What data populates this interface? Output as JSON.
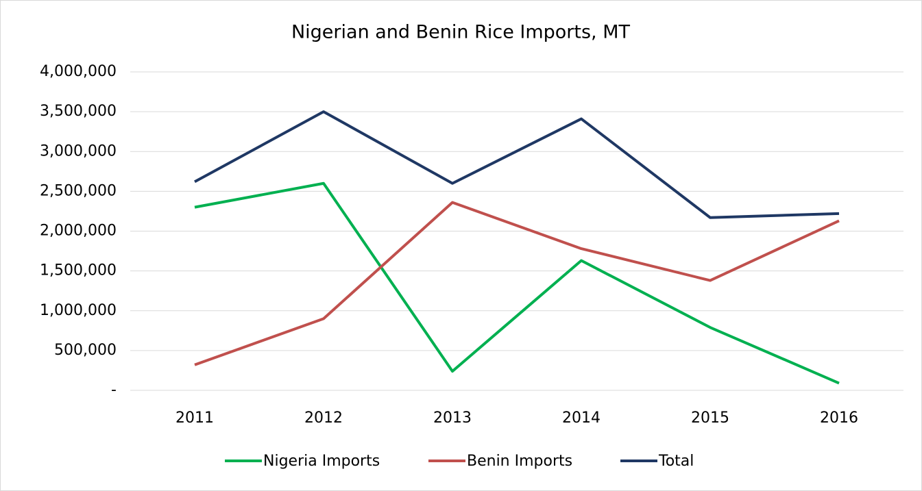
{
  "chart_data": {
    "type": "line",
    "title": "Nigerian and Benin Rice Imports, MT",
    "categories": [
      "2011",
      "2012",
      "2013",
      "2014",
      "2015",
      "2016"
    ],
    "series": [
      {
        "name": "Nigeria Imports",
        "color": "#00b050",
        "values": [
          2300000,
          2600000,
          240000,
          1630000,
          790000,
          90000
        ]
      },
      {
        "name": "Benin Imports",
        "color": "#c0504d",
        "values": [
          320000,
          900000,
          2360000,
          1780000,
          1380000,
          2130000
        ]
      },
      {
        "name": "Total",
        "color": "#1f3864",
        "values": [
          2620000,
          3500000,
          2600000,
          3410000,
          2170000,
          2220000
        ]
      }
    ],
    "ylim": [
      0,
      4000000
    ],
    "yticks": [
      {
        "value": 0,
        "label": "-"
      },
      {
        "value": 500000,
        "label": "500,000"
      },
      {
        "value": 1000000,
        "label": "1,000,000"
      },
      {
        "value": 1500000,
        "label": "1,500,000"
      },
      {
        "value": 2000000,
        "label": "2,000,000"
      },
      {
        "value": 2500000,
        "label": "2,500,000"
      },
      {
        "value": 3000000,
        "label": "3,000,000"
      },
      {
        "value": 3500000,
        "label": "3,500,000"
      },
      {
        "value": 4000000,
        "label": "4,000,000"
      }
    ],
    "grid": true,
    "legend": "bottom"
  }
}
